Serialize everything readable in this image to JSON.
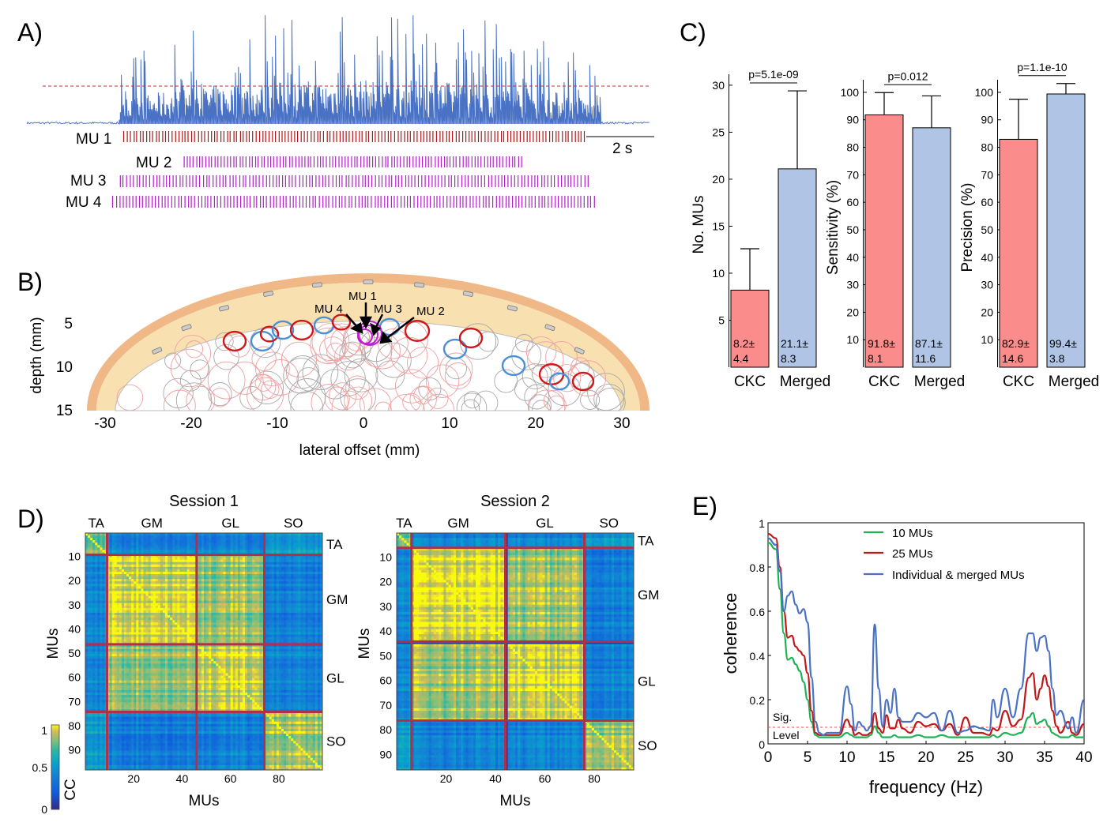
{
  "panels": {
    "A": "A)",
    "B": "B)",
    "C": "C)",
    "D": "D)",
    "E": "E)"
  },
  "panel_a": {
    "trace_color": "#4a72c4",
    "threshold_color": "#c43030",
    "scale_bar_label": "2 s",
    "mu_trains": [
      {
        "label": "MU 1",
        "color": "#b01818",
        "spikes": 144
      },
      {
        "label": "MU 2",
        "color": "#b020c8",
        "spikes": 110
      },
      {
        "label": "MU 3",
        "color": "#b020c8",
        "spikes": 142
      },
      {
        "label": "MU 4",
        "color": "#b020c8",
        "spikes": 148
      }
    ]
  },
  "panel_b": {
    "xlabel": "lateral offset (mm)",
    "ylabel": "depth (mm)",
    "xticks": [
      "-30",
      "-20",
      "-10",
      "0",
      "10",
      "20",
      "30"
    ],
    "yticks": [
      "5",
      "10",
      "15"
    ],
    "annotations": [
      "MU 1",
      "MU 2",
      "MU 3",
      "MU 4"
    ]
  },
  "chart_data": [
    {
      "type": "bar",
      "panel": "C",
      "ylabel": "No. MUs",
      "categories": [
        "CKC",
        "Merged"
      ],
      "values": [
        8.2,
        21.1
      ],
      "errors": [
        4.4,
        8.3
      ],
      "value_labels": [
        [
          "8.2±",
          "4.4"
        ],
        [
          "21.1±",
          "8.3"
        ]
      ],
      "colors": [
        "#fa8c8c",
        "#b0c4e6"
      ],
      "ylim": [
        0,
        31
      ],
      "yticks": [
        "5",
        "10",
        "15",
        "20",
        "25",
        "30"
      ],
      "pvalue": "p=5.1e-09"
    },
    {
      "type": "bar",
      "panel": "C",
      "ylabel": "Sensitivity (%)",
      "categories": [
        "CKC",
        "Merged"
      ],
      "values": [
        91.8,
        87.1
      ],
      "errors": [
        8.1,
        11.6
      ],
      "value_labels": [
        [
          "91.8±",
          "8.1"
        ],
        [
          "87.1±",
          "11.6"
        ]
      ],
      "colors": [
        "#fa8c8c",
        "#b0c4e6"
      ],
      "ylim": [
        0,
        104
      ],
      "yticks": [
        "10",
        "20",
        "30",
        "40",
        "50",
        "60",
        "70",
        "80",
        "90",
        "100"
      ],
      "pvalue": "p=0.012"
    },
    {
      "type": "bar",
      "panel": "C",
      "ylabel": "Precision (%)",
      "categories": [
        "CKC",
        "Merged"
      ],
      "values": [
        82.9,
        99.4
      ],
      "errors": [
        14.6,
        3.8
      ],
      "value_labels": [
        [
          "82.9±",
          "14.6"
        ],
        [
          "99.4±",
          "3.8"
        ]
      ],
      "colors": [
        "#fa8c8c",
        "#b0c4e6"
      ],
      "ylim": [
        0,
        104
      ],
      "yticks": [
        "10",
        "20",
        "30",
        "40",
        "50",
        "60",
        "70",
        "80",
        "90",
        "100"
      ],
      "pvalue": "p=1.1e-10"
    },
    {
      "type": "heatmap",
      "panel": "D",
      "sessions": [
        {
          "title": "Session 1",
          "n": 98,
          "boundaries": [
            9,
            46,
            74
          ]
        },
        {
          "title": "Session 2",
          "n": 96,
          "boundaries": [
            6,
            44,
            76
          ]
        }
      ],
      "muscles": [
        "TA",
        "GM",
        "GL",
        "SO"
      ],
      "xlabel": "MUs",
      "ylabel": "MUs",
      "yticks": [
        "10",
        "20",
        "30",
        "40",
        "50",
        "60",
        "70",
        "80",
        "90"
      ],
      "xticks": [
        "20",
        "40",
        "60",
        "80"
      ],
      "colorbar": {
        "label": "CC",
        "ticks": [
          "1",
          "0.5",
          "0"
        ],
        "range": [
          0,
          1
        ]
      }
    },
    {
      "type": "line",
      "panel": "E",
      "xlabel": "frequency (Hz)",
      "ylabel": "coherence",
      "xlim": [
        0,
        40
      ],
      "ylim": [
        0,
        1
      ],
      "xticks": [
        "0",
        "5",
        "10",
        "15",
        "20",
        "25",
        "30",
        "35",
        "40"
      ],
      "yticks": [
        "0",
        "0.2",
        "0.4",
        "0.6",
        "0.8",
        "1"
      ],
      "threshold": {
        "value": 0.075,
        "label": [
          "Sig.",
          "Level"
        ]
      },
      "x": [
        0,
        1,
        1.5,
        2,
        2.5,
        3,
        3.5,
        4,
        4.5,
        5,
        5.5,
        6,
        6.5,
        7,
        7.5,
        8,
        9,
        10,
        10.5,
        11,
        11.5,
        12,
        12.5,
        13,
        13.5,
        14,
        14.5,
        15,
        15.5,
        16,
        16.5,
        17,
        18,
        19,
        20,
        21,
        22,
        23,
        24,
        25,
        26,
        27,
        28,
        28.5,
        29,
        30,
        31,
        32,
        33,
        33.5,
        34,
        34.5,
        35,
        35.5,
        36,
        36.5,
        37,
        38,
        38.5,
        39,
        40
      ],
      "series": [
        {
          "name": "10 MUs",
          "color": "#1db354",
          "values": [
            0.91,
            0.88,
            0.7,
            0.5,
            0.38,
            0.39,
            0.36,
            0.33,
            0.28,
            0.2,
            0.1,
            0.04,
            0.03,
            0.03,
            0.03,
            0.03,
            0.03,
            0.05,
            0.04,
            0.03,
            0.03,
            0.03,
            0.03,
            0.04,
            0.08,
            0.05,
            0.03,
            0.03,
            0.03,
            0.04,
            0.03,
            0.03,
            0.03,
            0.04,
            0.03,
            0.03,
            0.04,
            0.03,
            0.03,
            0.03,
            0.03,
            0.03,
            0.03,
            0.04,
            0.03,
            0.05,
            0.04,
            0.05,
            0.12,
            0.14,
            0.09,
            0.1,
            0.11,
            0.08,
            0.05,
            0.04,
            0.03,
            0.03,
            0.04,
            0.03,
            0.03
          ]
        },
        {
          "name": "25 MUs",
          "color": "#c01818",
          "values": [
            0.95,
            0.93,
            0.8,
            0.6,
            0.48,
            0.49,
            0.44,
            0.42,
            0.4,
            0.32,
            0.15,
            0.05,
            0.04,
            0.04,
            0.04,
            0.04,
            0.04,
            0.11,
            0.08,
            0.04,
            0.05,
            0.04,
            0.04,
            0.05,
            0.14,
            0.07,
            0.05,
            0.13,
            0.07,
            0.07,
            0.11,
            0.07,
            0.05,
            0.1,
            0.08,
            0.09,
            0.06,
            0.09,
            0.04,
            0.12,
            0.05,
            0.05,
            0.04,
            0.07,
            0.06,
            0.15,
            0.08,
            0.11,
            0.3,
            0.32,
            0.2,
            0.25,
            0.31,
            0.26,
            0.15,
            0.08,
            0.05,
            0.1,
            0.05,
            0.04,
            0.09
          ]
        },
        {
          "name": "Individual & merged  MUs",
          "color": "#4a72c4",
          "values": [
            0.93,
            0.9,
            0.78,
            0.6,
            0.67,
            0.69,
            0.63,
            0.59,
            0.61,
            0.55,
            0.3,
            0.1,
            0.05,
            0.04,
            0.05,
            0.05,
            0.05,
            0.26,
            0.18,
            0.06,
            0.1,
            0.08,
            0.06,
            0.08,
            0.54,
            0.25,
            0.08,
            0.2,
            0.14,
            0.25,
            0.12,
            0.1,
            0.1,
            0.14,
            0.12,
            0.14,
            0.06,
            0.15,
            0.05,
            0.06,
            0.08,
            0.07,
            0.06,
            0.2,
            0.12,
            0.25,
            0.12,
            0.25,
            0.5,
            0.5,
            0.42,
            0.48,
            0.49,
            0.42,
            0.25,
            0.13,
            0.15,
            0.07,
            0.12,
            0.05,
            0.2
          ]
        }
      ]
    }
  ]
}
